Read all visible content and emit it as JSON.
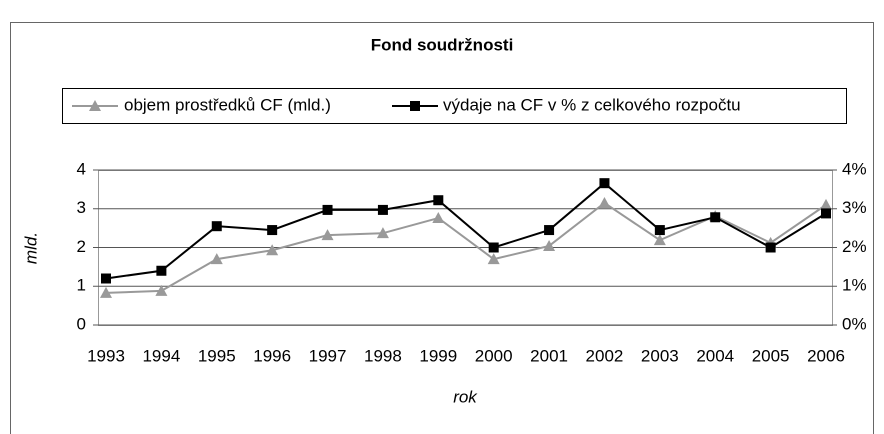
{
  "chart_data": {
    "type": "line",
    "title": "Fond soudržnosti",
    "categories": [
      "1993",
      "1994",
      "1995",
      "1996",
      "1997",
      "1998",
      "1999",
      "2000",
      "2001",
      "2002",
      "2003",
      "2004",
      "2005",
      "2006"
    ],
    "series": [
      {
        "name": "objem prostředků CF (mld.)",
        "color": "#999999",
        "marker": "triangle",
        "values": [
          0.83,
          0.88,
          1.7,
          1.93,
          2.32,
          2.37,
          2.76,
          1.7,
          2.04,
          3.15,
          2.19,
          2.81,
          2.12,
          3.1
        ]
      },
      {
        "name": "výdaje na CF v % z celkového rozpočtu",
        "color": "#000000",
        "marker": "square",
        "axis": "y2",
        "values": [
          1.2,
          1.4,
          2.55,
          2.45,
          2.97,
          2.97,
          3.22,
          2.0,
          2.45,
          3.66,
          2.45,
          2.78,
          2.0,
          2.88
        ]
      }
    ],
    "xlabel": "rok",
    "ylabel": "mld.",
    "ylim": [
      0,
      4
    ],
    "yticks": [
      0,
      1,
      2,
      3,
      4
    ],
    "y2lim": [
      0,
      4
    ],
    "y2ticks": [
      {
        "value": 0,
        "label": "0%"
      },
      {
        "value": 1,
        "label": "1%"
      },
      {
        "value": 2,
        "label": "2%"
      },
      {
        "value": 3,
        "label": "3%"
      },
      {
        "value": 4,
        "label": "4%"
      }
    ],
    "grid": true,
    "legend": "top"
  }
}
